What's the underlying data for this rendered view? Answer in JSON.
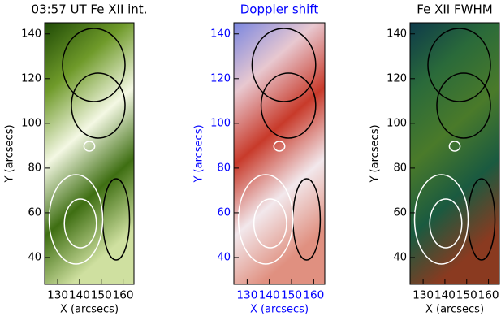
{
  "chart_data": [
    {
      "type": "image",
      "title": "03:57 UT Fe XII int.",
      "xlabel": "X (arcsecs)",
      "ylabel": "Y (arcsecs)",
      "xlim": [
        124,
        165
      ],
      "ylim": [
        28,
        145
      ],
      "xticks": [
        130,
        140,
        150,
        160
      ],
      "yticks": [
        40,
        60,
        80,
        100,
        120,
        140
      ],
      "label_color": "#000000",
      "colors": [
        "#1f4a06",
        "#6f9a2a",
        "#f4f8e4",
        "#3e6e12",
        "#cfe0a0"
      ]
    },
    {
      "type": "image",
      "title": "Doppler shift",
      "xlabel": "X (arcsecs)",
      "ylabel": "Y (arcsecs)",
      "xlim": [
        124,
        165
      ],
      "ylim": [
        28,
        145
      ],
      "xticks": [
        130,
        140,
        150,
        160
      ],
      "yticks": [
        40,
        60,
        80,
        100,
        120,
        140
      ],
      "label_color": "#0000ff",
      "colors": [
        "#7a86e0",
        "#e8c8d0",
        "#c83a2a",
        "#f2e8ec",
        "#e09080"
      ]
    },
    {
      "type": "image",
      "title": "Fe XII FWHM",
      "xlabel": "X (arcsecs)",
      "ylabel": "Y (arcsecs)",
      "xlim": [
        124,
        165
      ],
      "ylim": [
        28,
        145
      ],
      "xticks": [
        130,
        140,
        150,
        160
      ],
      "yticks": [
        40,
        60,
        80,
        100,
        120,
        140
      ],
      "label_color": "#000000",
      "colors": [
        "#0d3a4a",
        "#2a6a3a",
        "#4a7a2a",
        "#1a5a40",
        "#8a3a20"
      ]
    }
  ]
}
